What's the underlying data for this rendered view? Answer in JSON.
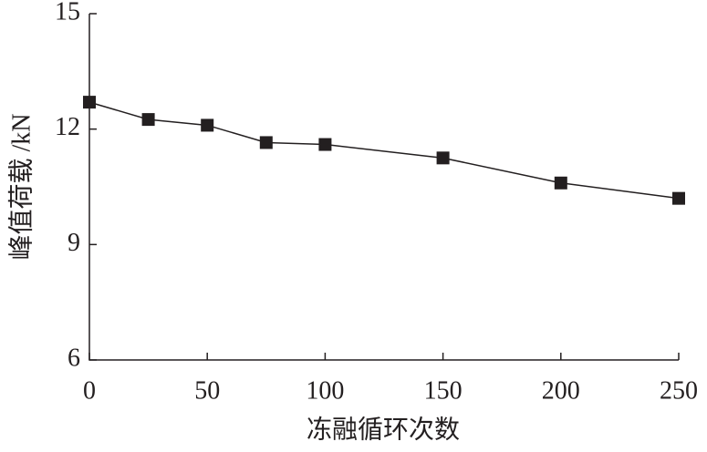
{
  "chart_data": {
    "type": "line",
    "x_label": "冻融循环次数",
    "y_label": "峰值荷载 /kN",
    "x": [
      0,
      25,
      50,
      75,
      100,
      150,
      200,
      250
    ],
    "series": [
      {
        "color": "#231f20",
        "values": [
          12.7,
          12.25,
          12.1,
          11.65,
          11.6,
          11.25,
          10.6,
          10.2
        ]
      }
    ],
    "xlim": [
      0,
      250
    ],
    "xticks": [
      0,
      50,
      100,
      150,
      200,
      250
    ],
    "ylim": [
      6,
      15
    ],
    "yticks": [
      6,
      9,
      12,
      15
    ],
    "grid": false
  }
}
